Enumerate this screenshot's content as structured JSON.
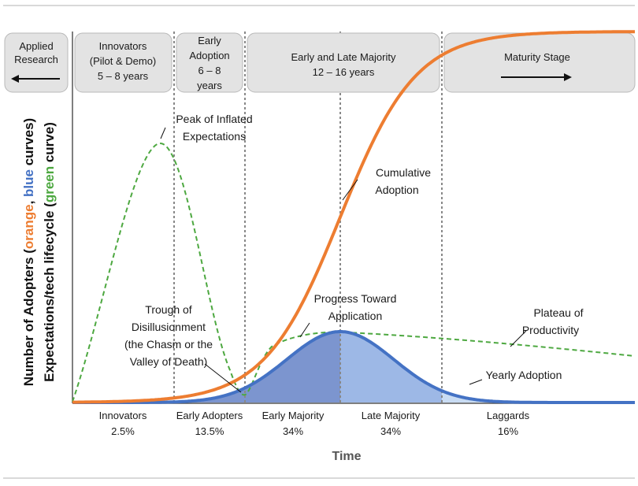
{
  "stages": [
    {
      "key": "applied",
      "lines": [
        "Applied",
        "Research"
      ]
    },
    {
      "key": "innovators",
      "lines": [
        "Innovators",
        "(Pilot & Demo)",
        "5 – 8 years"
      ]
    },
    {
      "key": "early_adoption",
      "lines": [
        "Early",
        "Adoption",
        "6 – 8",
        "years"
      ]
    },
    {
      "key": "majority",
      "lines": [
        "Early and Late Majority",
        "12 – 16 years"
      ]
    },
    {
      "key": "maturity",
      "lines": [
        "Maturity Stage"
      ]
    }
  ],
  "y_axis_labels": {
    "line1": [
      "Number of Adopters (",
      "orange",
      ", ",
      "blue",
      " curves)"
    ],
    "line2": [
      "Expectations/tech lifecycle (",
      "green",
      " curve)"
    ]
  },
  "x_axis_title": "Time",
  "segments": [
    {
      "name": "Innovators",
      "pct": "2.5%"
    },
    {
      "name": "Early Adopters",
      "pct": "13.5%"
    },
    {
      "name": "Early Majority",
      "pct": "34%"
    },
    {
      "name": "Late Majority",
      "pct": "34%"
    },
    {
      "name": "Laggards",
      "pct": "16%"
    }
  ],
  "annotations": {
    "peak": [
      "Peak of Inflated",
      "Expectations"
    ],
    "trough": [
      "Trough of",
      "Disillusionment",
      "(the Chasm or the",
      "Valley of Death)"
    ],
    "progress": [
      "Progress Toward",
      "Application"
    ],
    "plateau": [
      "Plateau of",
      "Productivity"
    ],
    "cumulative": [
      "Cumulative",
      "Adoption"
    ],
    "yearly": [
      "Yearly Adoption"
    ]
  },
  "colors": {
    "orange": "#ED7D31",
    "blue": "#4472C4",
    "green": "#4DA840",
    "fill_dark": "#7C95CF",
    "fill_mid": "#9DB8E6",
    "fill_light": "#C9DCF3",
    "fill_innov": "#9CAED8",
    "box": "#E3E3E3",
    "box_border": "#B8B8B8"
  }
}
